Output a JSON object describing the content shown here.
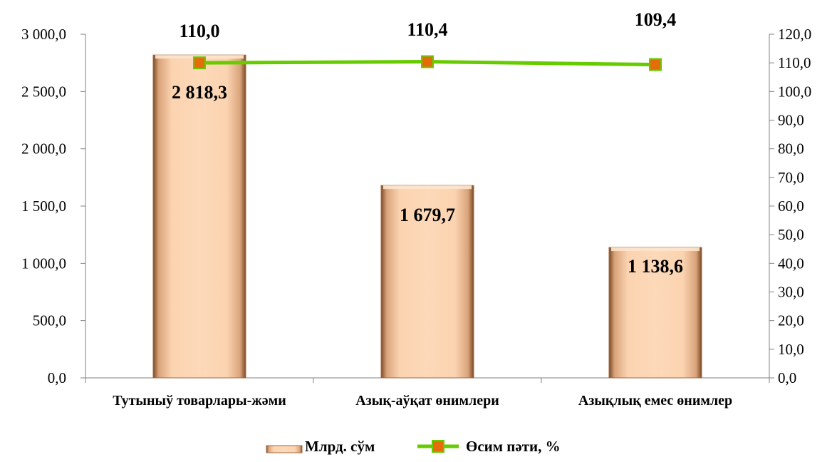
{
  "chart_data": {
    "type": "bar",
    "categories": [
      "Тутыныў товарлары-жәми",
      "Азық-аўқат өнимлери",
      "Азықлық емес өнимлер"
    ],
    "series": [
      {
        "name": "Млрд. сўм",
        "type": "bar",
        "axis": "left",
        "values": [
          2818.3,
          1679.7,
          1138.6
        ],
        "labels": [
          "2 818,3",
          "1 679,7",
          "1 138,6"
        ],
        "color": "#f9c9a1"
      },
      {
        "name": "Өсим пәти, %",
        "type": "line",
        "axis": "right",
        "values": [
          110.0,
          110.4,
          109.4
        ],
        "labels": [
          "110,0",
          "110,4",
          "109,4"
        ],
        "color": "#66cc00",
        "marker_color": "#e46c0a"
      }
    ],
    "y_left": {
      "ylim": [
        0,
        3000
      ],
      "ticks": [
        0,
        500,
        1000,
        1500,
        2000,
        2500,
        3000
      ],
      "tick_labels": [
        "0,0",
        "500,0",
        "1 000,0",
        "1 500,0",
        "2 000,0",
        "2 500,0",
        "3 000,0"
      ]
    },
    "y_right": {
      "ylim": [
        0,
        120
      ],
      "ticks": [
        0,
        10,
        20,
        30,
        40,
        50,
        60,
        70,
        80,
        90,
        100,
        110,
        120
      ],
      "tick_labels": [
        "0,0",
        "10,0",
        "20,0",
        "30,0",
        "40,0",
        "50,0",
        "60,0",
        "70,0",
        "80,0",
        "90,0",
        "100,0",
        "110,0",
        "120,0"
      ]
    },
    "grid": false,
    "legend": "bottom"
  }
}
